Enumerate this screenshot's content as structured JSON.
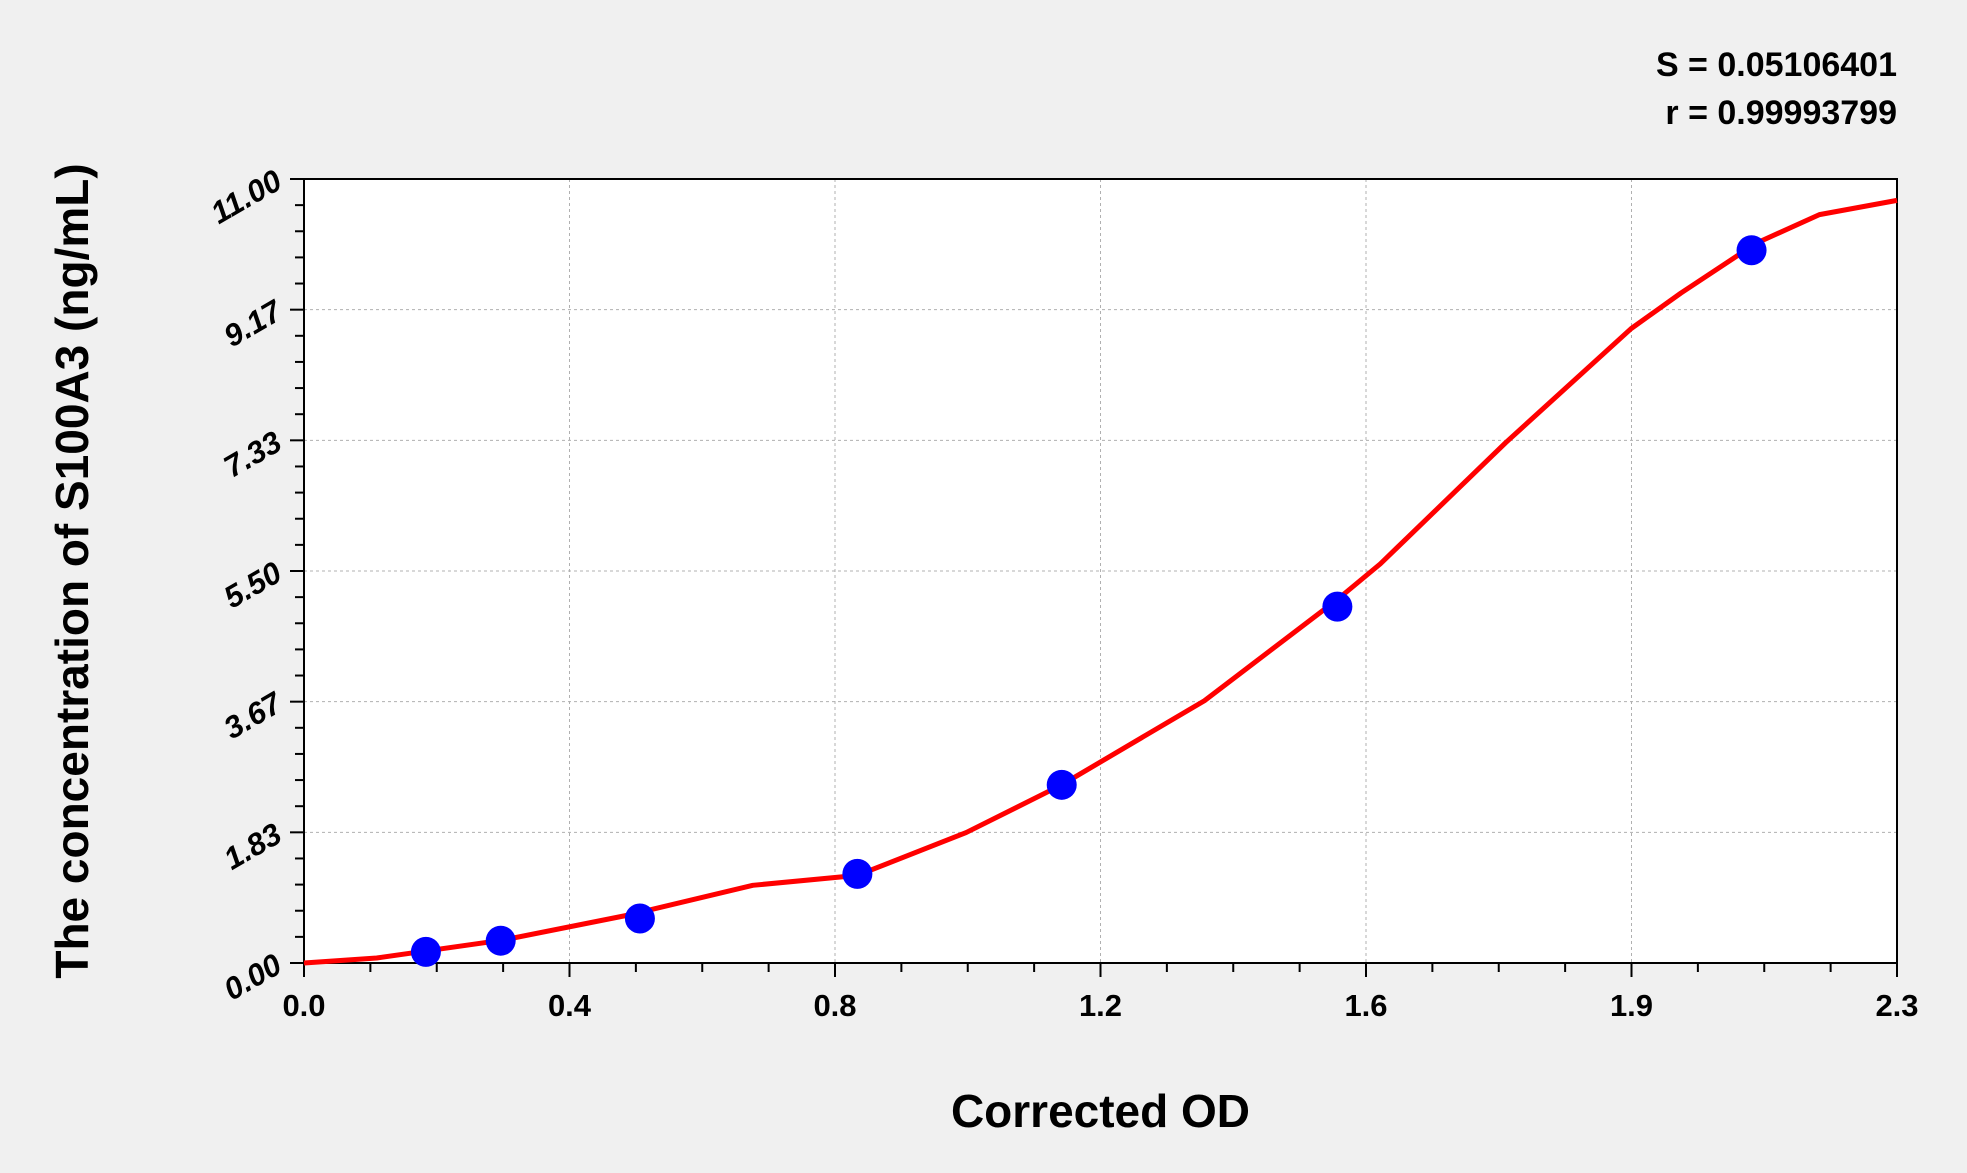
{
  "chart_data": {
    "type": "scatter",
    "title": "",
    "xlabel": "Corrected OD",
    "ylabel": "The concentration of S100A3 (ng/mL)",
    "xlim": [
      0,
      2.3
    ],
    "ylim": [
      0,
      11
    ],
    "x_tick_labels": [
      "0.0",
      "0.4",
      "0.8",
      "1.2",
      "1.6",
      "1.9",
      "2.3"
    ],
    "y_tick_labels": [
      "0.00",
      "1.83",
      "3.67",
      "5.50",
      "7.33",
      "9.17",
      "11.00"
    ],
    "grid": true,
    "annotations": [
      "S = 0.05106401",
      "r = 0.99993799"
    ],
    "colors": {
      "points": "#0000ff",
      "curve": "#ff0000",
      "grid": "#b0b0b0",
      "background": "#f0f0f0",
      "plot_background": "#ffffff"
    },
    "series": [
      {
        "type": "scatter",
        "x": [
          0.176,
          0.284,
          0.485,
          0.799,
          1.094,
          1.492,
          2.09
        ],
        "y": [
          0.156,
          0.313,
          0.625,
          1.25,
          2.5,
          5,
          10
        ]
      },
      {
        "type": "line",
        "x": [
          0,
          0.105,
          0.286,
          0.467,
          0.648,
          0.799,
          0.956,
          1.094,
          1.3,
          1.492,
          1.554,
          1.735,
          1.916,
          1.988,
          2.097,
          2.188,
          2.3
        ],
        "y": [
          0,
          0.07,
          0.32,
          0.67,
          1.09,
          1.23,
          1.83,
          2.5,
          3.68,
          5.1,
          5.6,
          7.3,
          8.9,
          9.4,
          10.1,
          10.5,
          10.7
        ]
      }
    ]
  }
}
